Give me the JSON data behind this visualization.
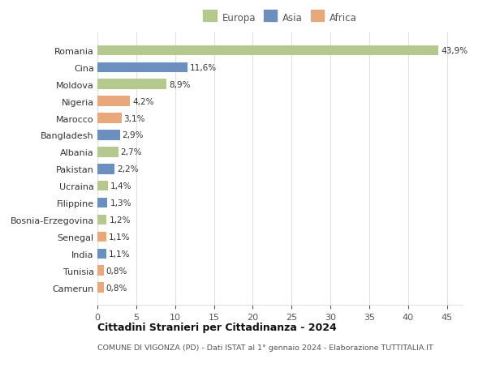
{
  "countries": [
    "Romania",
    "Cina",
    "Moldova",
    "Nigeria",
    "Marocco",
    "Bangladesh",
    "Albania",
    "Pakistan",
    "Ucraina",
    "Filippine",
    "Bosnia-Erzegovina",
    "Senegal",
    "India",
    "Tunisia",
    "Camerun"
  ],
  "values": [
    43.9,
    11.6,
    8.9,
    4.2,
    3.1,
    2.9,
    2.7,
    2.2,
    1.4,
    1.3,
    1.2,
    1.1,
    1.1,
    0.8,
    0.8
  ],
  "labels": [
    "43,9%",
    "11,6%",
    "8,9%",
    "4,2%",
    "3,1%",
    "2,9%",
    "2,7%",
    "2,2%",
    "1,4%",
    "1,3%",
    "1,2%",
    "1,1%",
    "1,1%",
    "0,8%",
    "0,8%"
  ],
  "continents": [
    "Europa",
    "Asia",
    "Europa",
    "Africa",
    "Africa",
    "Asia",
    "Europa",
    "Asia",
    "Europa",
    "Asia",
    "Europa",
    "Africa",
    "Asia",
    "Africa",
    "Africa"
  ],
  "colors": {
    "Europa": "#b5c98e",
    "Asia": "#6b8fbf",
    "Africa": "#e8a87c"
  },
  "title": "Cittadini Stranieri per Cittadinanza - 2024",
  "subtitle": "COMUNE DI VIGONZA (PD) - Dati ISTAT al 1° gennaio 2024 - Elaborazione TUTTITALIA.IT",
  "xlim": [
    0,
    47
  ],
  "xticks": [
    0,
    5,
    10,
    15,
    20,
    25,
    30,
    35,
    40,
    45
  ],
  "background_color": "#ffffff",
  "grid_color": "#e0e0e0"
}
